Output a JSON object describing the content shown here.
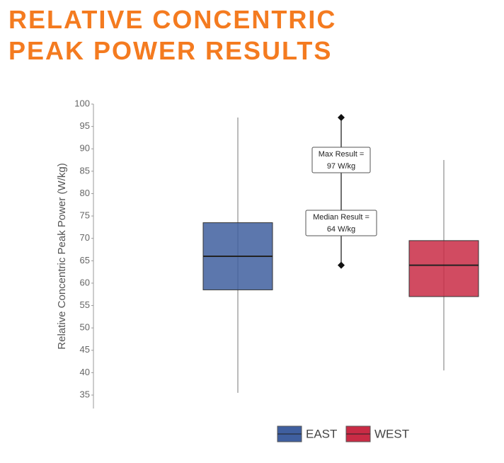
{
  "chart_data": {
    "type": "box",
    "title": [
      "RELATIVE CONCENTRIC",
      "PEAK POWER RESULTS"
    ],
    "y_label": "Relative Concentric Peak Power (W/kg)",
    "ylim": [
      32,
      100
    ],
    "yticks": [
      35,
      40,
      45,
      50,
      55,
      60,
      65,
      70,
      75,
      80,
      85,
      90,
      95,
      100
    ],
    "series": [
      {
        "name": "EAST",
        "color": "#3f5f9f",
        "min": 35.5,
        "q1": 58.5,
        "median": 66,
        "q3": 73.5,
        "max": 97
      },
      {
        "name": "WEST",
        "color": "#c92b45",
        "min": 40.5,
        "q1": 57,
        "median": 64,
        "q3": 69.5,
        "max": 87.5
      }
    ],
    "annotations": [
      {
        "label": [
          "Max Result =",
          "97 W/kg"
        ],
        "value": 97
      },
      {
        "label": [
          "Median Result =",
          "64 W/kg"
        ],
        "value": 64
      }
    ]
  }
}
